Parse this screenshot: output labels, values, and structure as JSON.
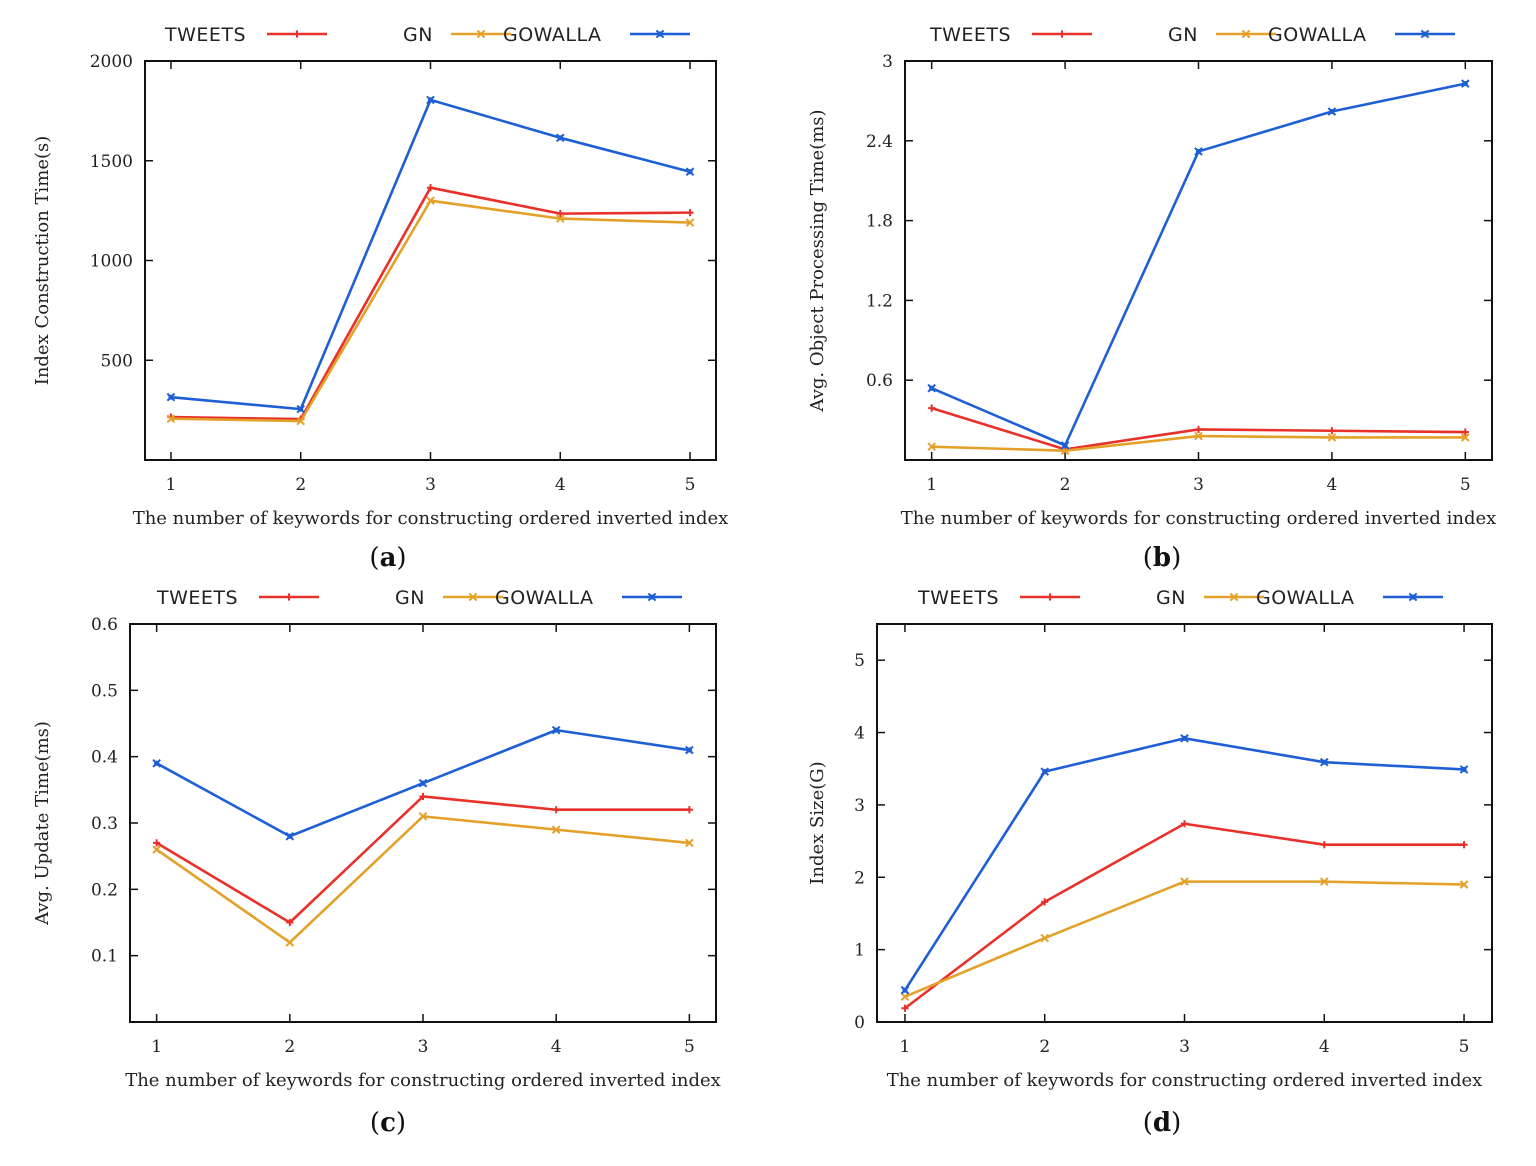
{
  "colors": {
    "tweets": "#e8312a",
    "gn": "#e3a12a",
    "gowalla": "#1f5fd6",
    "axis": "#111111"
  },
  "chart_data": [
    {
      "id": "a",
      "type": "line",
      "caption": "(a)",
      "caption_letter": "a",
      "xlabel": "The number of keywords for constructing ordered inverted index",
      "ylabel": "Index Construction Time(s)",
      "x": [
        1,
        2,
        3,
        4,
        5
      ],
      "xlim": [
        0.8,
        5.2
      ],
      "ylim": [
        0,
        2000
      ],
      "yticks": [
        500,
        1000,
        1500,
        2000
      ],
      "series": [
        {
          "name": "TWEETS",
          "values": [
            215,
            205,
            1365,
            1235,
            1240
          ]
        },
        {
          "name": "GN",
          "values": [
            207,
            195,
            1300,
            1210,
            1190
          ]
        },
        {
          "name": "GOWALLA",
          "values": [
            315,
            255,
            1805,
            1615,
            1445
          ]
        }
      ]
    },
    {
      "id": "b",
      "type": "line",
      "caption": "(b)",
      "caption_letter": "b",
      "xlabel": "The number of keywords for constructing ordered inverted index",
      "ylabel": "Avg. Object Processing Time(ms)",
      "x": [
        1,
        2,
        3,
        4,
        5
      ],
      "xlim": [
        0.8,
        5.2
      ],
      "ylim": [
        0,
        3
      ],
      "yticks": [
        0.6,
        1.2,
        1.8,
        2.4,
        3
      ],
      "ytick_labels": [
        "0.6",
        "1.2",
        "1.8",
        "2.4",
        "3"
      ],
      "series": [
        {
          "name": "TWEETS",
          "values": [
            0.39,
            0.08,
            0.23,
            0.22,
            0.21
          ]
        },
        {
          "name": "GN",
          "values": [
            0.1,
            0.07,
            0.18,
            0.17,
            0.17
          ]
        },
        {
          "name": "GOWALLA",
          "values": [
            0.54,
            0.11,
            2.32,
            2.62,
            2.83
          ]
        }
      ]
    },
    {
      "id": "c",
      "type": "line",
      "caption": "(c)",
      "caption_letter": "c",
      "xlabel": "The number of keywords for constructing ordered inverted index",
      "ylabel": "Avg. Update Time(ms)",
      "x": [
        1,
        2,
        3,
        4,
        5
      ],
      "xlim": [
        0.8,
        5.2
      ],
      "ylim": [
        0,
        0.6
      ],
      "yticks": [
        0.1,
        0.2,
        0.3,
        0.4,
        0.5,
        0.6
      ],
      "ytick_labels": [
        "0.1",
        "0.2",
        "0.3",
        "0.4",
        "0.5",
        "0.6"
      ],
      "series": [
        {
          "name": "TWEETS",
          "values": [
            0.27,
            0.15,
            0.34,
            0.32,
            0.32
          ]
        },
        {
          "name": "GN",
          "values": [
            0.26,
            0.12,
            0.31,
            0.29,
            0.27
          ]
        },
        {
          "name": "GOWALLA",
          "values": [
            0.39,
            0.28,
            0.36,
            0.44,
            0.41
          ]
        }
      ]
    },
    {
      "id": "d",
      "type": "line",
      "caption": "(d)",
      "caption_letter": "d",
      "xlabel": "The number of keywords for constructing ordered inverted index",
      "ylabel": "Index Size(G)",
      "x": [
        1,
        2,
        3,
        4,
        5
      ],
      "xlim": [
        0.8,
        5.2
      ],
      "ylim": [
        0,
        5.5
      ],
      "yticks": [
        0,
        1,
        2,
        3,
        4,
        5
      ],
      "ytick_labels": [
        "0",
        "1",
        "2",
        "3",
        "4",
        "5"
      ],
      "series": [
        {
          "name": "TWEETS",
          "values": [
            0.19,
            1.66,
            2.74,
            2.45,
            2.45
          ]
        },
        {
          "name": "GN",
          "values": [
            0.35,
            1.16,
            1.94,
            1.94,
            1.9
          ]
        },
        {
          "name": "GOWALLA",
          "values": [
            0.44,
            3.46,
            3.92,
            3.59,
            3.49
          ]
        }
      ]
    }
  ]
}
